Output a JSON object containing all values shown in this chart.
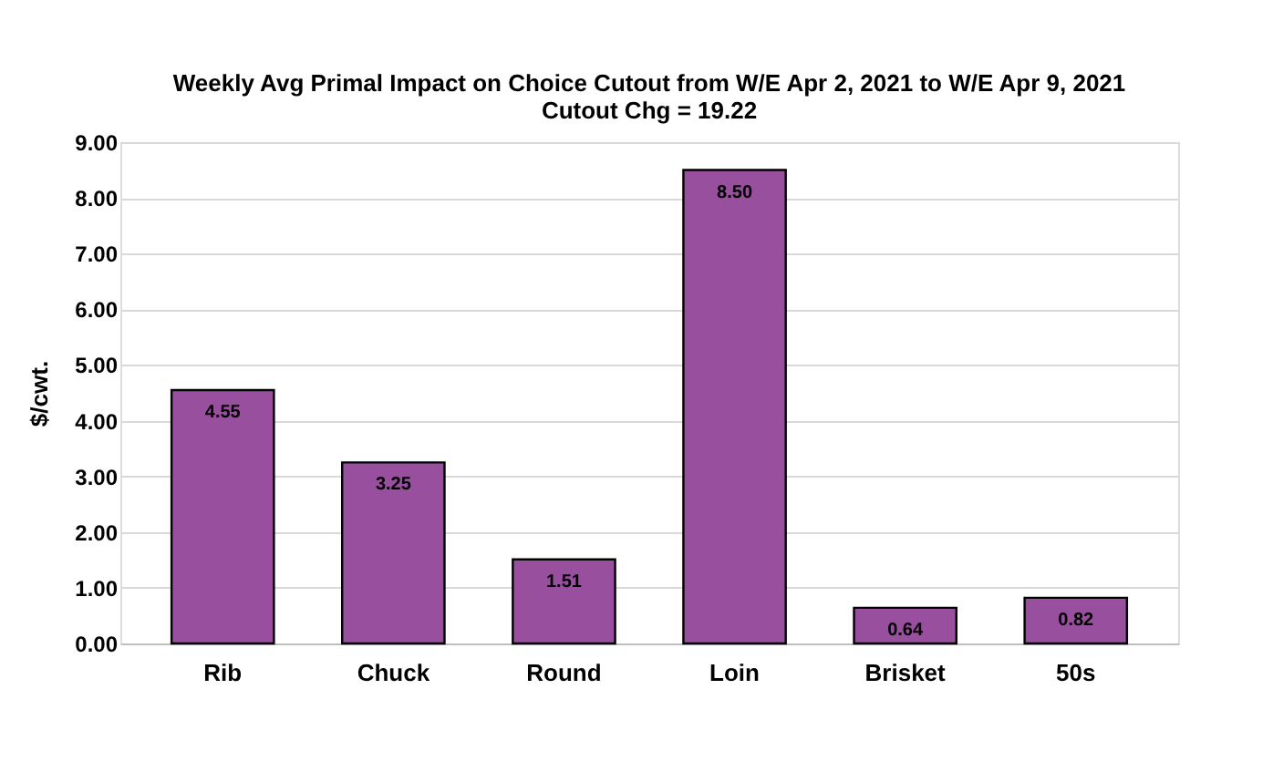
{
  "chart_data": {
    "type": "bar",
    "title": "Weekly Avg Primal Impact on Choice Cutout from W/E Apr 2, 2021 to W/E Apr 9, 2021",
    "subtitle": "Cutout Chg = 19.22",
    "ylabel": "$/cwt.",
    "categories": [
      "Rib",
      "Chuck",
      "Round",
      "Loin",
      "Brisket",
      "50s"
    ],
    "values": [
      4.55,
      3.25,
      1.51,
      8.5,
      0.64,
      0.82
    ],
    "value_labels": [
      "4.55",
      "3.25",
      "1.51",
      "8.50",
      "0.64",
      "0.82"
    ],
    "color": "#974f9e",
    "ylim": [
      0,
      9
    ],
    "yticks": [
      {
        "value": 0,
        "label": "0.00"
      },
      {
        "value": 1,
        "label": "1.00"
      },
      {
        "value": 2,
        "label": "2.00"
      },
      {
        "value": 3,
        "label": "3.00"
      },
      {
        "value": 4,
        "label": "4.00"
      },
      {
        "value": 5,
        "label": "5.00"
      },
      {
        "value": 6,
        "label": "6.00"
      },
      {
        "value": 7,
        "label": "7.00"
      },
      {
        "value": 8,
        "label": "8.00"
      },
      {
        "value": 9,
        "label": "9.00"
      }
    ],
    "grid": "y"
  }
}
